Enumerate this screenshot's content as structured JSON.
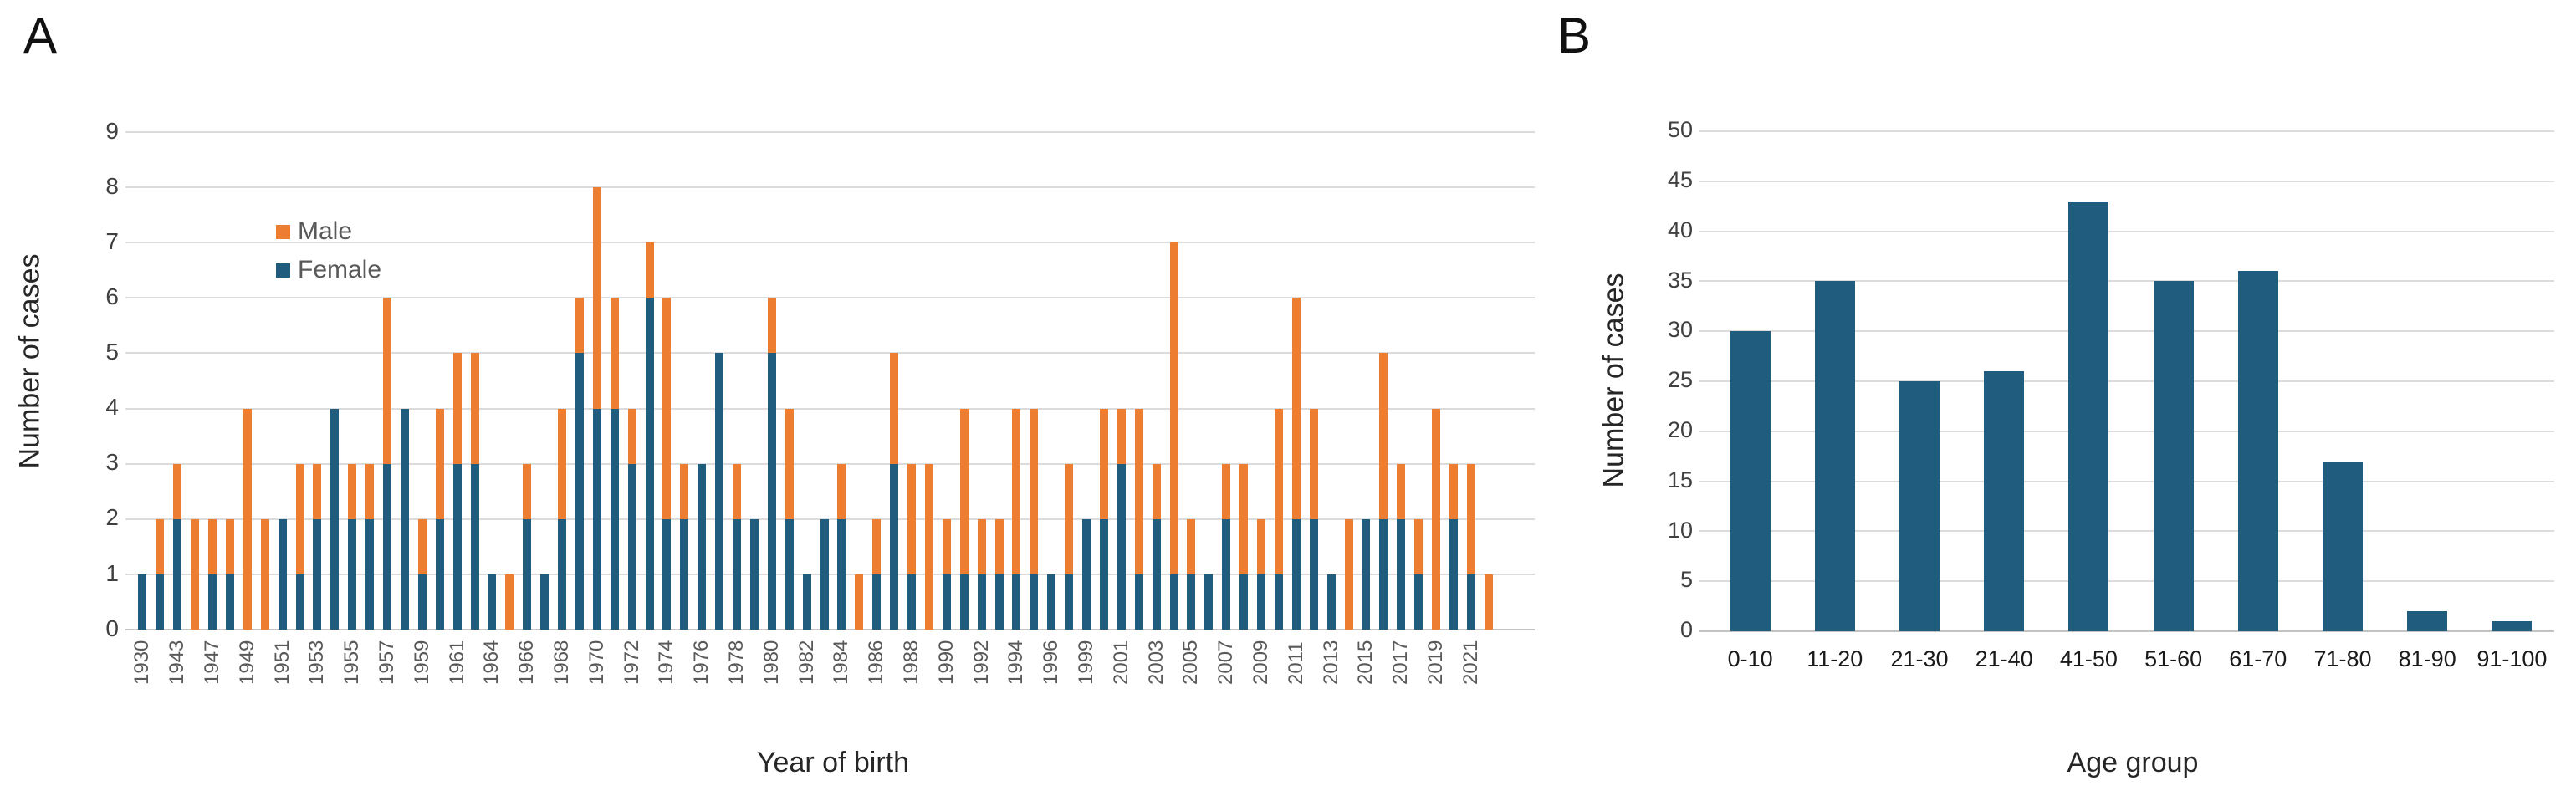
{
  "panels": [
    {
      "panel_label": "A",
      "y_axis_title": "Number of cases",
      "x_axis_title": "Year of birth",
      "legend": [
        {
          "label": "Male",
          "color": "#ED7D31"
        },
        {
          "label": "Female",
          "color": "#1F5C7D"
        }
      ]
    },
    {
      "panel_label": "B",
      "y_axis_title": "Number of cases",
      "x_axis_title": "Age group"
    }
  ],
  "chart_data": [
    {
      "type": "stacked-bar",
      "panel": "A",
      "title": "",
      "xlabel": "Year of birth",
      "ylabel": "Number of cases",
      "ylim": [
        0,
        9
      ],
      "y_ticks": [
        0,
        1,
        2,
        3,
        4,
        5,
        6,
        7,
        8,
        9
      ],
      "grid": "horizontal",
      "legend_position": "upper-left-inside",
      "series_order": [
        "female",
        "male"
      ],
      "series_colors": {
        "female": "#1F5C7D",
        "male": "#ED7D31"
      },
      "x_axis_note": "year labels shown on alternate bars, rotated 90°",
      "bars": [
        {
          "label": "1930",
          "female": 1,
          "male": 0
        },
        {
          "label": "",
          "female": 1,
          "male": 1
        },
        {
          "label": "1943",
          "female": 2,
          "male": 1
        },
        {
          "label": "",
          "female": 0,
          "male": 2
        },
        {
          "label": "1947",
          "female": 1,
          "male": 1
        },
        {
          "label": "",
          "female": 1,
          "male": 1
        },
        {
          "label": "1949",
          "female": 0,
          "male": 4
        },
        {
          "label": "",
          "female": 0,
          "male": 2
        },
        {
          "label": "1951",
          "female": 2,
          "male": 0
        },
        {
          "label": "",
          "female": 1,
          "male": 2
        },
        {
          "label": "1953",
          "female": 2,
          "male": 1
        },
        {
          "label": "",
          "female": 4,
          "male": 0
        },
        {
          "label": "1955",
          "female": 2,
          "male": 1
        },
        {
          "label": "",
          "female": 2,
          "male": 1
        },
        {
          "label": "1957",
          "female": 3,
          "male": 3
        },
        {
          "label": "",
          "female": 4,
          "male": 0
        },
        {
          "label": "1959",
          "female": 1,
          "male": 1
        },
        {
          "label": "",
          "female": 2,
          "male": 2
        },
        {
          "label": "1961",
          "female": 3,
          "male": 2
        },
        {
          "label": "",
          "female": 3,
          "male": 2
        },
        {
          "label": "1964",
          "female": 1,
          "male": 0
        },
        {
          "label": "",
          "female": 0,
          "male": 1
        },
        {
          "label": "1966",
          "female": 2,
          "male": 1
        },
        {
          "label": "",
          "female": 1,
          "male": 0
        },
        {
          "label": "1968",
          "female": 2,
          "male": 2
        },
        {
          "label": "",
          "female": 5,
          "male": 1
        },
        {
          "label": "1970",
          "female": 4,
          "male": 4
        },
        {
          "label": "",
          "female": 4,
          "male": 2
        },
        {
          "label": "1972",
          "female": 3,
          "male": 1
        },
        {
          "label": "",
          "female": 6,
          "male": 1
        },
        {
          "label": "1974",
          "female": 2,
          "male": 4
        },
        {
          "label": "",
          "female": 2,
          "male": 1
        },
        {
          "label": "1976",
          "female": 3,
          "male": 0
        },
        {
          "label": "",
          "female": 5,
          "male": 0
        },
        {
          "label": "1978",
          "female": 2,
          "male": 1
        },
        {
          "label": "",
          "female": 2,
          "male": 0
        },
        {
          "label": "1980",
          "female": 5,
          "male": 1
        },
        {
          "label": "",
          "female": 2,
          "male": 2
        },
        {
          "label": "1982",
          "female": 1,
          "male": 0
        },
        {
          "label": "",
          "female": 2,
          "male": 0
        },
        {
          "label": "1984",
          "female": 2,
          "male": 1
        },
        {
          "label": "",
          "female": 0,
          "male": 1
        },
        {
          "label": "1986",
          "female": 1,
          "male": 1
        },
        {
          "label": "",
          "female": 3,
          "male": 2
        },
        {
          "label": "1988",
          "female": 1,
          "male": 2
        },
        {
          "label": "",
          "female": 0,
          "male": 3
        },
        {
          "label": "1990",
          "female": 1,
          "male": 1
        },
        {
          "label": "",
          "female": 1,
          "male": 3
        },
        {
          "label": "1992",
          "female": 1,
          "male": 1
        },
        {
          "label": "",
          "female": 1,
          "male": 1
        },
        {
          "label": "1994",
          "female": 1,
          "male": 3
        },
        {
          "label": "",
          "female": 1,
          "male": 3
        },
        {
          "label": "1996",
          "female": 1,
          "male": 0
        },
        {
          "label": "",
          "female": 1,
          "male": 2
        },
        {
          "label": "1999",
          "female": 2,
          "male": 0
        },
        {
          "label": "",
          "female": 2,
          "male": 2
        },
        {
          "label": "2001",
          "female": 3,
          "male": 1
        },
        {
          "label": "",
          "female": 1,
          "male": 3
        },
        {
          "label": "2003",
          "female": 2,
          "male": 1
        },
        {
          "label": "",
          "female": 1,
          "male": 6
        },
        {
          "label": "2005",
          "female": 1,
          "male": 1
        },
        {
          "label": "",
          "female": 1,
          "male": 0
        },
        {
          "label": "2007",
          "female": 2,
          "male": 1
        },
        {
          "label": "",
          "female": 1,
          "male": 2
        },
        {
          "label": "2009",
          "female": 1,
          "male": 1
        },
        {
          "label": "",
          "female": 1,
          "male": 3
        },
        {
          "label": "2011",
          "female": 2,
          "male": 4
        },
        {
          "label": "",
          "female": 2,
          "male": 2
        },
        {
          "label": "2013",
          "female": 1,
          "male": 0
        },
        {
          "label": "",
          "female": 0,
          "male": 2
        },
        {
          "label": "2015",
          "female": 2,
          "male": 0
        },
        {
          "label": "",
          "female": 2,
          "male": 3
        },
        {
          "label": "2017",
          "female": 2,
          "male": 1
        },
        {
          "label": "",
          "female": 1,
          "male": 1
        },
        {
          "label": "2019",
          "female": 0,
          "male": 4
        },
        {
          "label": "",
          "female": 2,
          "male": 1
        },
        {
          "label": "2021",
          "female": 1,
          "male": 2
        },
        {
          "label": "",
          "female": 0,
          "male": 1
        }
      ]
    },
    {
      "type": "bar",
      "panel": "B",
      "title": "",
      "xlabel": "Age group",
      "ylabel": "Number of cases",
      "ylim": [
        0,
        50
      ],
      "y_ticks": [
        0,
        5,
        10,
        15,
        20,
        25,
        30,
        35,
        40,
        45,
        50
      ],
      "grid": "horizontal",
      "bar_color": "#1F5C7D",
      "categories": [
        "0-10",
        "11-20",
        "21-30",
        "21-40",
        "41-50",
        "51-60",
        "61-70",
        "71-80",
        "81-90",
        "91-100"
      ],
      "values": [
        30,
        35,
        25,
        26,
        43,
        35,
        36,
        17,
        2,
        1
      ]
    }
  ]
}
